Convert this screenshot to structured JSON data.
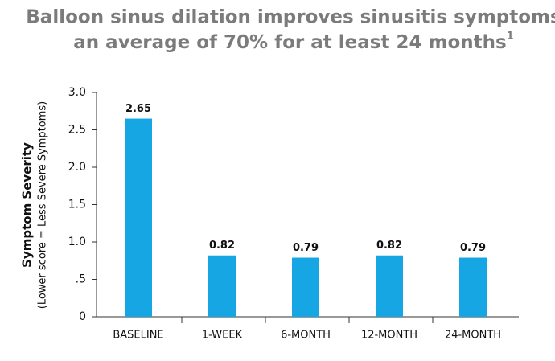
{
  "chart_data": {
    "type": "bar",
    "title": [
      "Balloon sinus dilation improves sinusitis symptoms",
      "an average of 70% for at least 24 months"
    ],
    "title_superscript": "1",
    "y_label": "Symptom Severity",
    "y_sublabel": "(Lower score = Less Severe Symptoms)",
    "categories": [
      "BASELINE",
      "1-WEEK",
      "6-MONTH",
      "12-MONTH",
      "24-MONTH"
    ],
    "values": [
      2.65,
      0.82,
      0.79,
      0.82,
      0.79
    ],
    "color": "#16a6e4",
    "ylim": [
      0,
      3
    ],
    "yticks": [
      0,
      {
        "value": 0.5,
        "label": ".5"
      },
      {
        "value": 1,
        "label": "1.0"
      },
      {
        "value": 1.5,
        "label": "1.5"
      },
      {
        "value": 2,
        "label": "2.0"
      },
      {
        "value": 2.5,
        "label": "2.5"
      },
      {
        "value": 3,
        "label": "3.0"
      }
    ],
    "grid": false
  }
}
